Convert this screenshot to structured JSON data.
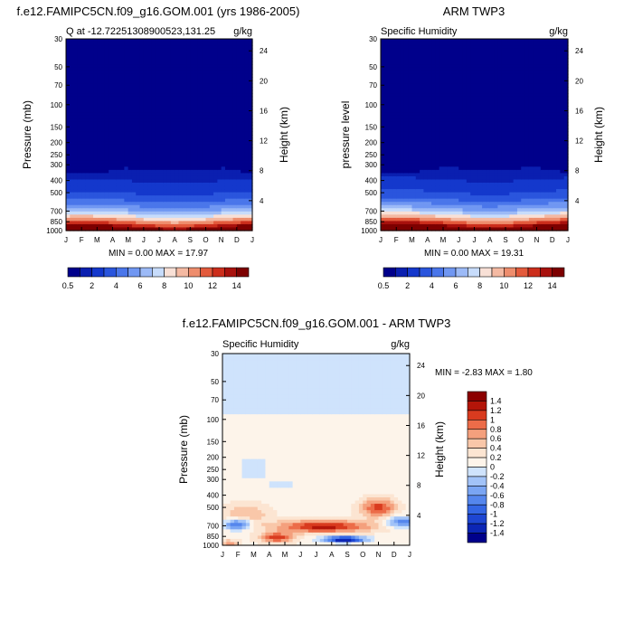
{
  "months": [
    "J",
    "F",
    "M",
    "A",
    "M",
    "J",
    "J",
    "A",
    "S",
    "O",
    "N",
    "D",
    "J"
  ],
  "pressure_ticks": [
    "30",
    "50",
    "70",
    "100",
    "150",
    "200",
    "250",
    "300",
    "400",
    "500",
    "700",
    "850",
    "1000"
  ],
  "height_ticks": [
    "24",
    "20",
    "16",
    "12",
    "8",
    "4"
  ],
  "chart_data": [
    {
      "type": "heatmap",
      "title": "f.e12.FAMIPC5CN.f09_g16.GOM.001 (yrs 1986-2005)",
      "subtitle_left": "Q at -12.72251308900523,131.25",
      "subtitle_right": "g/kg",
      "ylabel": "Pressure (mb)",
      "ylabel_right": "Height (km)",
      "minmax": "MIN =   0.00 MAX =  17.97",
      "min": 0.0,
      "max": 17.97,
      "colorbar_labels": [
        "0.5",
        "2",
        "4",
        "6",
        "8",
        "10",
        "12",
        "14"
      ]
    },
    {
      "type": "heatmap",
      "title": "ARM TWP3",
      "subtitle_left": "Specific Humidity",
      "subtitle_right": "g/kg",
      "ylabel": "pressure level",
      "ylabel_right": "Height (km)",
      "minmax": "MIN =   0.00 MAX =  19.31",
      "min": 0.0,
      "max": 19.31,
      "colorbar_labels": [
        "0.5",
        "2",
        "4",
        "6",
        "8",
        "10",
        "12",
        "14"
      ]
    },
    {
      "type": "heatmap",
      "title": "f.e12.FAMIPC5CN.f09_g16.GOM.001 - ARM TWP3",
      "subtitle_left": "Specific Humidity",
      "subtitle_right": "g/kg",
      "ylabel": "Pressure (mb)",
      "ylabel_right": "Height (km)",
      "minmax": "MIN =  -2.83 MAX =   1.80",
      "min": -2.83,
      "max": 1.8,
      "colorbar_labels": [
        "1.4",
        "1.2",
        "1",
        "0.8",
        "0.6",
        "0.4",
        "0.2",
        "0",
        "-0.2",
        "-0.4",
        "-0.6",
        "-0.8",
        "-1",
        "-1.2",
        "-1.4"
      ]
    }
  ],
  "palettes": {
    "absolute": [
      "#00008b",
      "#0a1fb0",
      "#1438cc",
      "#2a55dd",
      "#4a76ea",
      "#7097f2",
      "#9cbaf7",
      "#c7dcfb",
      "#f8e0d6",
      "#f4b9a2",
      "#ee8d6d",
      "#e35a3c",
      "#cc2e1c",
      "#a8110d",
      "#7d0000"
    ],
    "difference": [
      "#00008b",
      "#0c26b5",
      "#1e46d2",
      "#3466e4",
      "#5586ed",
      "#7aa5f3",
      "#a2c3f8",
      "#cfe3fc",
      "#fdf4ea",
      "#fce5d2",
      "#f9c7a9",
      "#f4a07d",
      "#ec6c49",
      "#d93b1f",
      "#b31509",
      "#8b0000"
    ]
  }
}
